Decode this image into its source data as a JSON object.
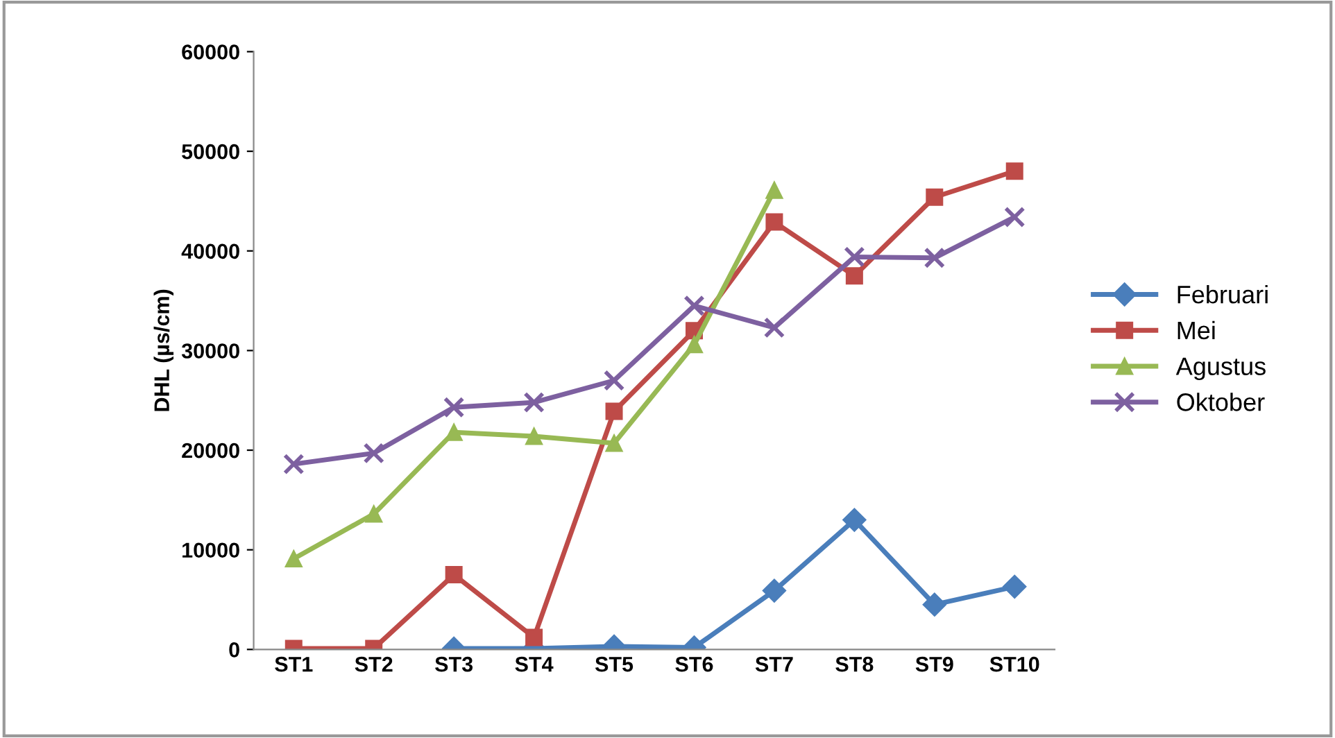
{
  "chart_data": {
    "type": "line",
    "ylabel": "DHL (µs/cm)",
    "categories": [
      "ST1",
      "ST2",
      "ST3",
      "ST4",
      "ST5",
      "ST6",
      "ST7",
      "ST8",
      "ST9",
      "ST10"
    ],
    "series": [
      {
        "name": "Februari",
        "color": "#4a7ebb",
        "marker": "diamond",
        "values": [
          null,
          null,
          100,
          100,
          300,
          200,
          5900,
          13000,
          4500,
          6300
        ]
      },
      {
        "name": "Mei",
        "color": "#be4b48",
        "marker": "square",
        "values": [
          100,
          100,
          7500,
          1200,
          23900,
          32000,
          42900,
          37500,
          45400,
          48000
        ]
      },
      {
        "name": "Agustus",
        "color": "#98b954",
        "marker": "triangle",
        "values": [
          9100,
          13600,
          21800,
          21400,
          20700,
          30600,
          46100,
          null,
          null,
          null
        ]
      },
      {
        "name": "Oktober",
        "color": "#7d60a0",
        "marker": "cross",
        "values": [
          18600,
          19700,
          24300,
          24800,
          27000,
          34500,
          32300,
          39400,
          39300,
          43400
        ]
      }
    ],
    "ylim": [
      0,
      60000
    ],
    "yticks": [
      0,
      10000,
      20000,
      30000,
      40000,
      50000,
      60000
    ],
    "grid": false,
    "legend": "right",
    "line_style": "solid"
  }
}
